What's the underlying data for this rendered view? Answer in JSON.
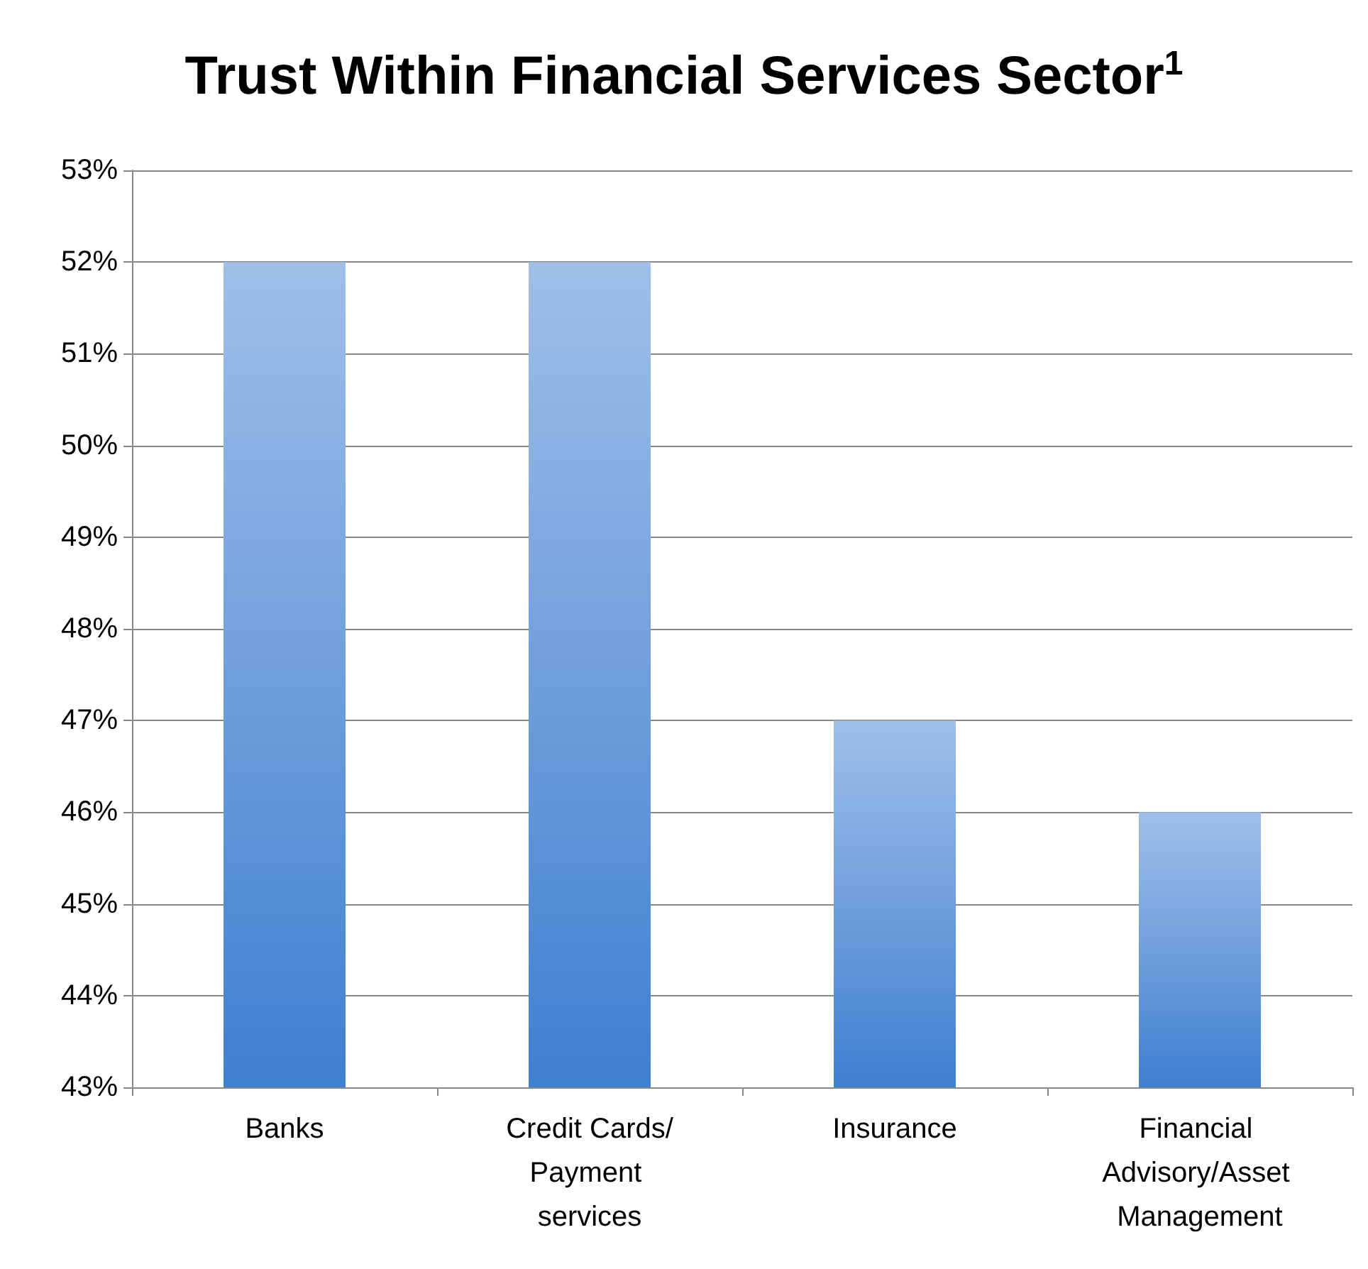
{
  "chart_data": {
    "type": "bar",
    "title": "Trust Within Financial Services Sector$^{1}$",
    "categories": [
      "Banks",
      "Credit Cards/Payment services",
      "Insurance",
      "Financial Advisory/Asset Management"
    ],
    "values": [
      52,
      52,
      47,
      46
    ],
    "color": "#3f7fd0",
    "ylim": [
      43,
      53
    ],
    "yticks": [
      {
        "value": 43,
        "label": "43%"
      },
      {
        "value": 44,
        "label": "44%"
      },
      {
        "value": 45,
        "label": "45%"
      },
      {
        "value": 46,
        "label": "46%"
      },
      {
        "value": 47,
        "label": "47%"
      },
      {
        "value": 48,
        "label": "48%"
      },
      {
        "value": 49,
        "label": "49%"
      },
      {
        "value": 50,
        "label": "50%"
      },
      {
        "value": 51,
        "label": "51%"
      },
      {
        "value": 52,
        "label": "52%"
      },
      {
        "value": 53,
        "label": "53%"
      }
    ],
    "grid": "y"
  }
}
